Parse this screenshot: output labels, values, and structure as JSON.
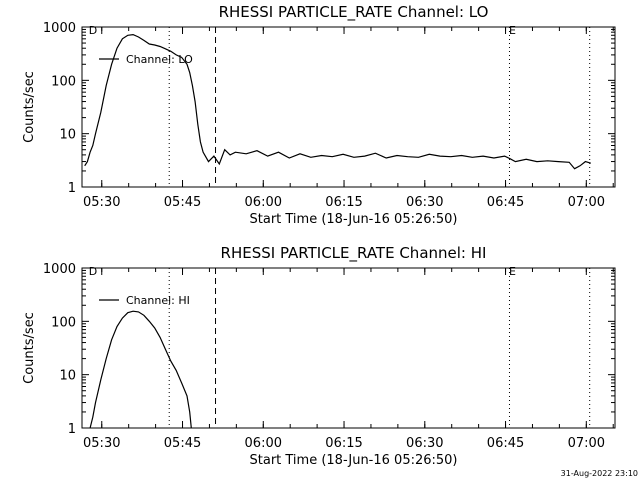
{
  "footer": {
    "timestamp": "31-Aug-2022 23:10"
  },
  "chart_data": [
    {
      "type": "line",
      "title": "RHESSI PARTICLE_RATE Channel: LO",
      "xlabel": "Start Time (18-Jun-16 05:26:50)",
      "ylabel": "Counts/sec",
      "yscale": "log",
      "ylim": [
        1,
        1000
      ],
      "xlim": [
        -0.5,
        98.5
      ],
      "x_unit": "minutes since 05:26:50",
      "x_ticks": [
        {
          "x": 3.17,
          "label": "05:30"
        },
        {
          "x": 18.17,
          "label": "05:45"
        },
        {
          "x": 33.17,
          "label": "06:00"
        },
        {
          "x": 48.17,
          "label": "06:15"
        },
        {
          "x": 63.17,
          "label": "06:30"
        },
        {
          "x": 78.17,
          "label": "06:45"
        },
        {
          "x": 93.17,
          "label": "07:00"
        }
      ],
      "y_ticks": [
        {
          "y": 1,
          "label": "1"
        },
        {
          "y": 10,
          "label": "10"
        },
        {
          "y": 100,
          "label": "100"
        },
        {
          "y": 1000,
          "label": "1000"
        }
      ],
      "vlines": [
        {
          "x": 15.7,
          "style": "dotted"
        },
        {
          "x": 24.3,
          "style": "dashed"
        },
        {
          "x": 78.9,
          "style": "dotted",
          "label": "E"
        },
        {
          "x": 93.8,
          "style": "dotted"
        }
      ],
      "corner_markers": [
        {
          "x": 0.2,
          "label": "D"
        }
      ],
      "legend": {
        "label": "Channel: LO",
        "placement": "top-left"
      },
      "series": [
        {
          "name": "Channel: LO",
          "x": [
            0,
            0.5,
            1,
            1.5,
            2,
            3,
            4,
            5,
            6,
            7,
            8,
            9,
            10,
            11,
            12,
            13,
            14,
            15,
            16,
            17,
            18,
            19,
            19.5,
            20,
            20.5,
            21,
            21.5,
            22,
            23,
            24,
            25,
            26,
            27,
            28,
            30,
            32,
            34,
            36,
            38,
            40,
            42,
            44,
            46,
            48,
            50,
            52,
            54,
            56,
            58,
            60,
            62,
            64,
            66,
            68,
            70,
            72,
            74,
            76,
            78,
            79,
            80,
            82,
            84,
            86,
            88,
            90,
            91,
            92,
            93,
            94
          ],
          "y": [
            2.5,
            3,
            4.5,
            6,
            10,
            25,
            80,
            200,
            400,
            600,
            700,
            720,
            650,
            560,
            480,
            460,
            430,
            390,
            350,
            300,
            270,
            200,
            140,
            80,
            40,
            15,
            7,
            4.5,
            3,
            3.8,
            2.7,
            5,
            4,
            4.5,
            4.2,
            4.8,
            3.8,
            4.5,
            3.5,
            4.2,
            3.6,
            3.9,
            3.7,
            4.1,
            3.6,
            3.8,
            4.3,
            3.5,
            3.9,
            3.7,
            3.6,
            4.1,
            3.8,
            3.7,
            3.9,
            3.6,
            3.8,
            3.5,
            3.8,
            3.4,
            3.0,
            3.3,
            3.0,
            3.1,
            3.0,
            2.9,
            2.2,
            2.5,
            3.0,
            2.8
          ]
        }
      ]
    },
    {
      "type": "line",
      "title": "RHESSI PARTICLE_RATE Channel: HI",
      "xlabel": "Start Time (18-Jun-16 05:26:50)",
      "ylabel": "Counts/sec",
      "yscale": "log",
      "ylim": [
        1,
        1000
      ],
      "xlim": [
        -0.5,
        98.5
      ],
      "x_unit": "minutes since 05:26:50",
      "x_ticks": [
        {
          "x": 3.17,
          "label": "05:30"
        },
        {
          "x": 18.17,
          "label": "05:45"
        },
        {
          "x": 33.17,
          "label": "06:00"
        },
        {
          "x": 48.17,
          "label": "06:15"
        },
        {
          "x": 63.17,
          "label": "06:30"
        },
        {
          "x": 78.17,
          "label": "06:45"
        },
        {
          "x": 93.17,
          "label": "07:00"
        }
      ],
      "y_ticks": [
        {
          "y": 1,
          "label": "1"
        },
        {
          "y": 10,
          "label": "10"
        },
        {
          "y": 100,
          "label": "100"
        },
        {
          "y": 1000,
          "label": "1000"
        }
      ],
      "vlines": [
        {
          "x": 15.7,
          "style": "dotted"
        },
        {
          "x": 24.3,
          "style": "dashed"
        },
        {
          "x": 78.9,
          "style": "dotted",
          "label": "E"
        },
        {
          "x": 93.8,
          "style": "dotted"
        }
      ],
      "corner_markers": [
        {
          "x": 0.2,
          "label": "D"
        }
      ],
      "legend": {
        "label": "Channel: HI",
        "placement": "top-left"
      },
      "series": [
        {
          "name": "Channel: HI",
          "x": [
            1,
            1.5,
            2,
            3,
            4,
            5,
            6,
            7,
            8,
            9,
            10,
            11,
            12,
            13,
            14,
            15,
            16,
            17,
            18,
            19,
            19.5,
            19.8
          ],
          "y": [
            1,
            1.6,
            3,
            8,
            20,
            45,
            80,
            115,
            145,
            155,
            150,
            130,
            100,
            75,
            50,
            30,
            18,
            12,
            7,
            4,
            2,
            1
          ]
        }
      ]
    }
  ]
}
